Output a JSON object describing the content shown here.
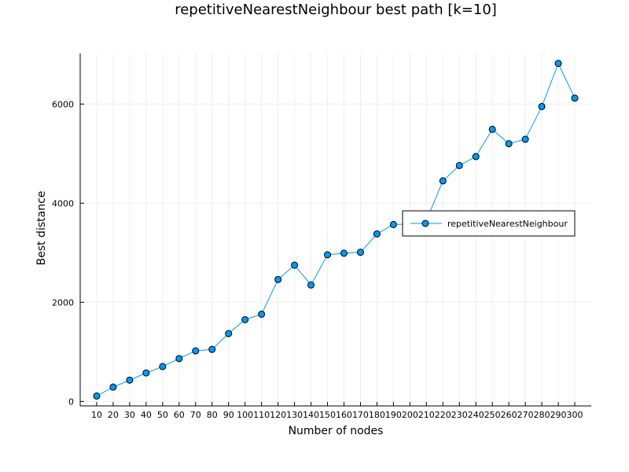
{
  "chart_data": {
    "type": "line",
    "title": "repetitiveNearestNeighbour best path [k=10]",
    "xlabel": "Number of nodes",
    "ylabel": "Best distance",
    "x": [
      10,
      20,
      30,
      40,
      50,
      60,
      70,
      80,
      90,
      100,
      110,
      120,
      130,
      140,
      150,
      160,
      170,
      180,
      190,
      200,
      210,
      220,
      230,
      240,
      250,
      260,
      270,
      280,
      290,
      300
    ],
    "series": [
      {
        "name": "repetitiveNearestNeighbour",
        "values": [
          110,
          290,
          430,
          575,
          705,
          865,
          1020,
          1050,
          1370,
          1650,
          1760,
          2460,
          2750,
          2350,
          2960,
          2990,
          3010,
          3380,
          3570,
          3580,
          3650,
          4450,
          4760,
          4940,
          5490,
          5200,
          5290,
          5950,
          6820,
          6120
        ]
      }
    ],
    "xticks": [
      "10",
      "20",
      "30",
      "40",
      "50",
      "60",
      "70",
      "80",
      "90",
      "100",
      "110",
      "120",
      "130",
      "140",
      "150",
      "160",
      "170",
      "180",
      "190",
      "200",
      "210",
      "220",
      "230",
      "240",
      "250",
      "260",
      "270",
      "280",
      "290",
      "300"
    ],
    "yticks": [
      "0",
      "2000",
      "4000",
      "6000"
    ],
    "ytick_values": [
      0,
      2000,
      4000,
      6000
    ],
    "xlim": [
      0,
      310
    ],
    "ylim": [
      -90,
      7020
    ],
    "grid": true,
    "legend_position": "right",
    "colors": {
      "series": "#009af9",
      "marker_edge": "#000000",
      "grid": "#eeeeee",
      "axis": "#000000"
    }
  }
}
